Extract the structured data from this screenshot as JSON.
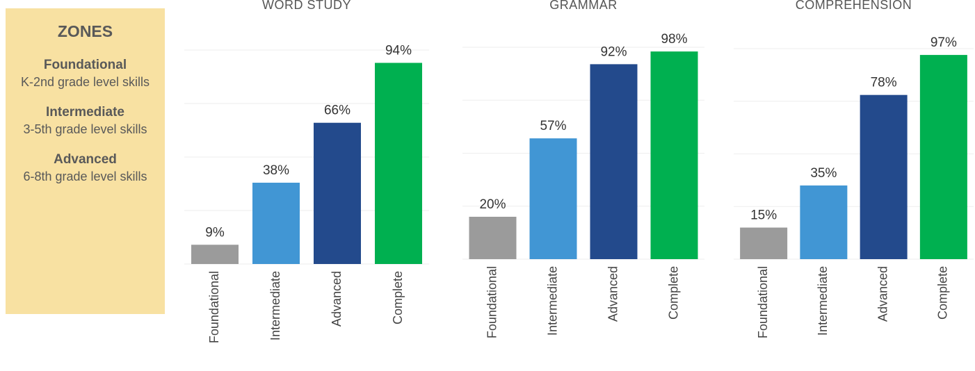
{
  "zones": {
    "title": "ZONES",
    "items": [
      {
        "name": "Foundational",
        "desc": "K-2nd grade level skills"
      },
      {
        "name": "Intermediate",
        "desc": "3-5th grade level skills"
      },
      {
        "name": "Advanced",
        "desc": "6-8th grade level skills"
      }
    ]
  },
  "chart_data": [
    {
      "type": "bar",
      "title": "WORD STUDY",
      "categories": [
        "Foundational",
        "Intermediate",
        "Advanced",
        "Complete"
      ],
      "values": [
        9,
        38,
        66,
        94
      ],
      "value_labels": [
        "9%",
        "38%",
        "66%",
        "94%"
      ],
      "colors": [
        "#9b9b9b",
        "#4196d4",
        "#234a8c",
        "#00b050"
      ],
      "ylim": [
        0,
        100
      ],
      "yticks": [
        0,
        25,
        50,
        75,
        100
      ],
      "grid": true
    },
    {
      "type": "bar",
      "title": "GRAMMAR",
      "categories": [
        "Foundational",
        "Intermediate",
        "Advanced",
        "Complete"
      ],
      "values": [
        20,
        57,
        92,
        98
      ],
      "value_labels": [
        "20%",
        "57%",
        "92%",
        "98%"
      ],
      "colors": [
        "#9b9b9b",
        "#4196d4",
        "#234a8c",
        "#00b050"
      ],
      "ylim": [
        0,
        100
      ],
      "yticks": [
        0,
        25,
        50,
        75,
        100
      ],
      "grid": true
    },
    {
      "type": "bar",
      "title": "COMPREHENSION",
      "categories": [
        "Foundational",
        "Intermediate",
        "Advanced",
        "Complete"
      ],
      "values": [
        15,
        35,
        78,
        97
      ],
      "value_labels": [
        "15%",
        "35%",
        "78%",
        "97%"
      ],
      "colors": [
        "#9b9b9b",
        "#4196d4",
        "#234a8c",
        "#00b050"
      ],
      "ylim": [
        0,
        100
      ],
      "yticks": [
        0,
        25,
        50,
        75,
        100
      ],
      "grid": true
    }
  ]
}
